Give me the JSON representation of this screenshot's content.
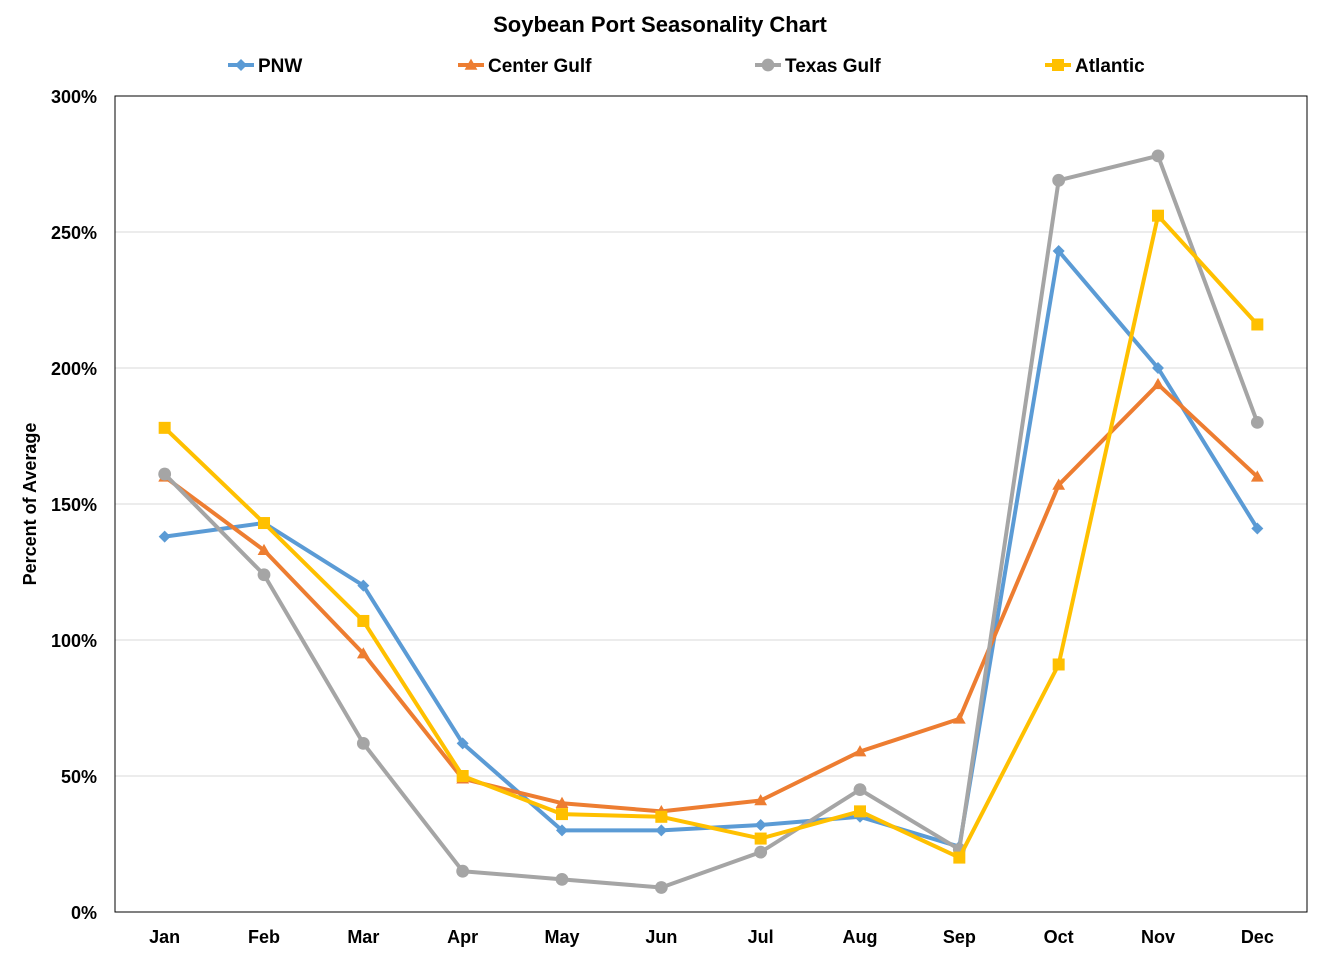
{
  "chart_data": {
    "type": "line",
    "title": "Soybean Port Seasonality Chart",
    "ylabel": "Percent of Average",
    "xlabel": "",
    "categories": [
      "Jan",
      "Feb",
      "Mar",
      "Apr",
      "May",
      "Jun",
      "Jul",
      "Aug",
      "Sep",
      "Oct",
      "Nov",
      "Dec"
    ],
    "ylim": [
      0,
      300
    ],
    "yticks": [
      "0%",
      "50%",
      "100%",
      "150%",
      "200%",
      "250%",
      "300%"
    ],
    "ytick_values": [
      0,
      50,
      100,
      150,
      200,
      250,
      300
    ],
    "grid": true,
    "legend_position": "top",
    "series": [
      {
        "name": "PNW",
        "color": "#5B9BD5",
        "marker": "diamond",
        "values": [
          138,
          143,
          120,
          62,
          30,
          30,
          32,
          35,
          24,
          243,
          200,
          141
        ]
      },
      {
        "name": "Center Gulf",
        "color": "#ED7D31",
        "marker": "triangle",
        "values": [
          160,
          133,
          95,
          49,
          40,
          37,
          41,
          59,
          71,
          157,
          194,
          160
        ]
      },
      {
        "name": "Texas Gulf",
        "color": "#A5A5A5",
        "marker": "circle",
        "values": [
          161,
          124,
          62,
          15,
          12,
          9,
          22,
          45,
          23,
          269,
          278,
          180
        ]
      },
      {
        "name": "Atlantic",
        "color": "#FFC000",
        "marker": "square",
        "values": [
          178,
          143,
          107,
          50,
          36,
          35,
          27,
          37,
          20,
          91,
          256,
          216
        ]
      }
    ]
  }
}
